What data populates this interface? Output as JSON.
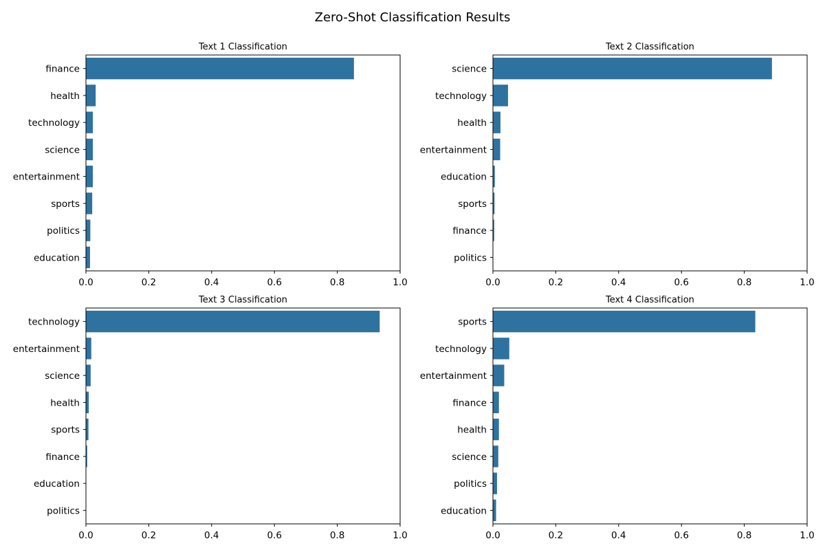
{
  "figure": {
    "title": "Zero-Shot Classification Results"
  },
  "chart_data": [
    {
      "type": "bar",
      "orientation": "horizontal",
      "title": "Text 1 Classification",
      "xlabel": "",
      "ylabel": "",
      "xlim": [
        0,
        1
      ],
      "xticks": [
        "0.0",
        "0.2",
        "0.4",
        "0.6",
        "0.8",
        "1.0"
      ],
      "categories": [
        "finance",
        "health",
        "technology",
        "science",
        "entertainment",
        "sports",
        "politics",
        "education"
      ],
      "values": [
        0.853,
        0.031,
        0.022,
        0.022,
        0.022,
        0.02,
        0.014,
        0.013
      ],
      "color": "#2e72a0",
      "grid": false
    },
    {
      "type": "bar",
      "orientation": "horizontal",
      "title": "Text 2 Classification",
      "xlabel": "",
      "ylabel": "",
      "xlim": [
        0,
        1
      ],
      "xticks": [
        "0.0",
        "0.2",
        "0.4",
        "0.6",
        "0.8",
        "1.0"
      ],
      "categories": [
        "science",
        "technology",
        "health",
        "entertainment",
        "education",
        "sports",
        "finance",
        "politics"
      ],
      "values": [
        0.888,
        0.048,
        0.024,
        0.023,
        0.006,
        0.005,
        0.004,
        0.001
      ],
      "color": "#2e72a0",
      "grid": false
    },
    {
      "type": "bar",
      "orientation": "horizontal",
      "title": "Text 3 Classification",
      "xlabel": "",
      "ylabel": "",
      "xlim": [
        0,
        1
      ],
      "xticks": [
        "0.0",
        "0.2",
        "0.4",
        "0.6",
        "0.8",
        "1.0"
      ],
      "categories": [
        "technology",
        "entertainment",
        "science",
        "health",
        "sports",
        "finance",
        "education",
        "politics"
      ],
      "values": [
        0.935,
        0.017,
        0.015,
        0.009,
        0.008,
        0.004,
        0.001,
        0.001
      ],
      "color": "#2e72a0",
      "grid": false
    },
    {
      "type": "bar",
      "orientation": "horizontal",
      "title": "Text 4 Classification",
      "xlabel": "",
      "ylabel": "",
      "xlim": [
        0,
        1
      ],
      "xticks": [
        "0.0",
        "0.2",
        "0.4",
        "0.6",
        "0.8",
        "1.0"
      ],
      "categories": [
        "sports",
        "technology",
        "entertainment",
        "finance",
        "health",
        "science",
        "politics",
        "education"
      ],
      "values": [
        0.835,
        0.052,
        0.036,
        0.019,
        0.019,
        0.017,
        0.013,
        0.01
      ],
      "color": "#2e72a0",
      "grid": false
    }
  ]
}
